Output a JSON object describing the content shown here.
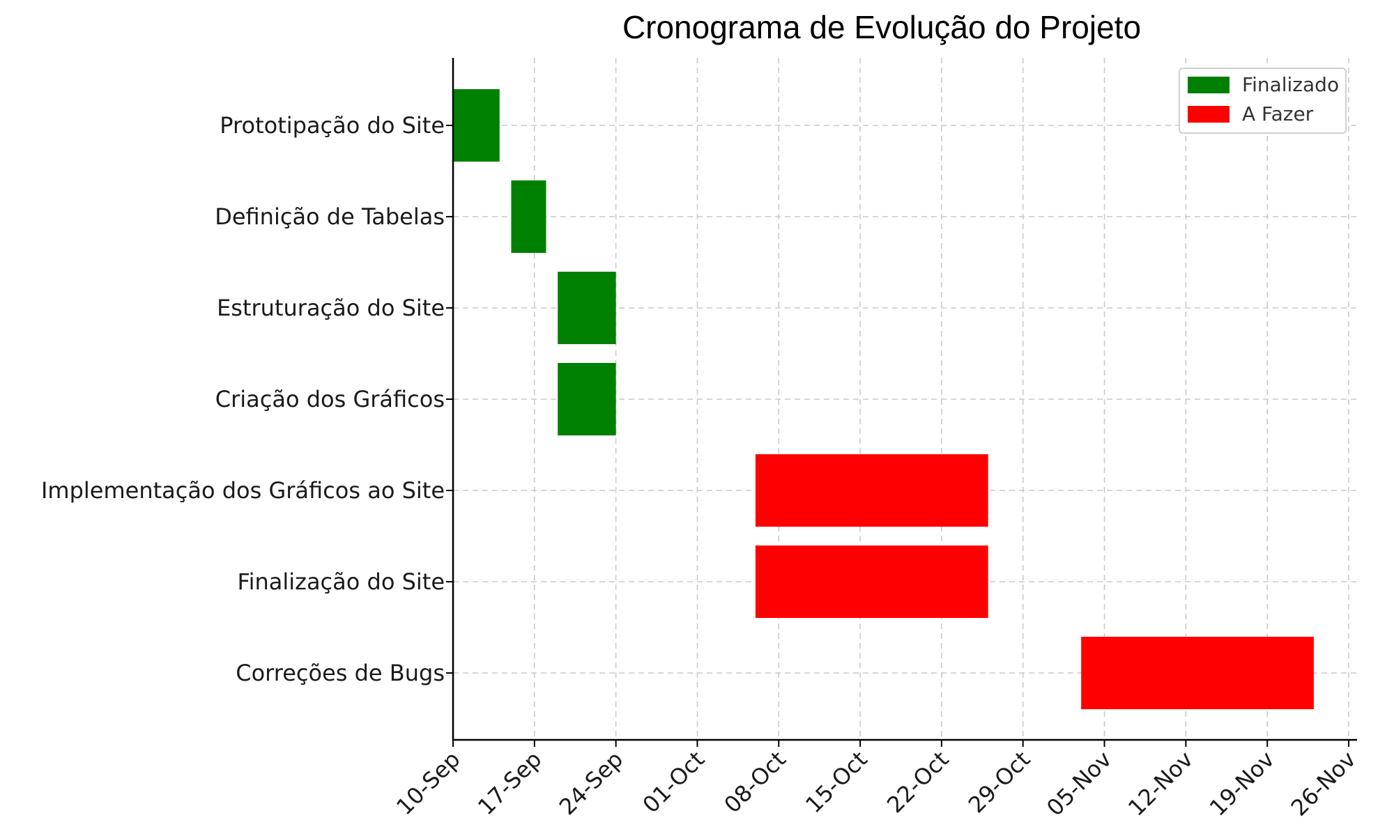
{
  "chart_data": {
    "type": "gantt",
    "title": "Cronograma de Evolução do Projeto",
    "xlabel": "",
    "ylabel": "",
    "x_axis": {
      "type": "date",
      "range": [
        "2023-09-10",
        "2023-11-26"
      ],
      "tick_dates": [
        "2023-09-10",
        "2023-09-17",
        "2023-09-24",
        "2023-10-01",
        "2023-10-08",
        "2023-10-15",
        "2023-10-22",
        "2023-10-29",
        "2023-11-05",
        "2023-11-12",
        "2023-11-19",
        "2023-11-26"
      ],
      "tick_labels": [
        "10-Sep",
        "17-Sep",
        "24-Sep",
        "01-Oct",
        "08-Oct",
        "15-Oct",
        "22-Oct",
        "29-Oct",
        "05-Nov",
        "12-Nov",
        "19-Nov",
        "26-Nov"
      ]
    },
    "grid": true,
    "legend_position": "top-right",
    "legend": [
      {
        "label": "Finalizado",
        "color": "#008000"
      },
      {
        "label": "A Fazer",
        "color": "#ff0000"
      }
    ],
    "tasks": [
      {
        "name": "Prototipação do Site",
        "start": "2023-09-10",
        "end": "2023-09-14",
        "status": "Finalizado"
      },
      {
        "name": "Definição de Tabelas",
        "start": "2023-09-15",
        "end": "2023-09-18",
        "status": "Finalizado"
      },
      {
        "name": "Estruturação do Site",
        "start": "2023-09-19",
        "end": "2023-09-24",
        "status": "Finalizado"
      },
      {
        "name": "Criação dos Gráficos",
        "start": "2023-09-19",
        "end": "2023-09-24",
        "status": "Finalizado"
      },
      {
        "name": "Implementação dos Gráficos ao Site",
        "start": "2023-10-06",
        "end": "2023-10-26",
        "status": "A Fazer"
      },
      {
        "name": "Finalização do Site",
        "start": "2023-10-06",
        "end": "2023-10-26",
        "status": "A Fazer"
      },
      {
        "name": "Correções de Bugs",
        "start": "2023-11-03",
        "end": "2023-11-23",
        "status": "A Fazer"
      }
    ]
  }
}
